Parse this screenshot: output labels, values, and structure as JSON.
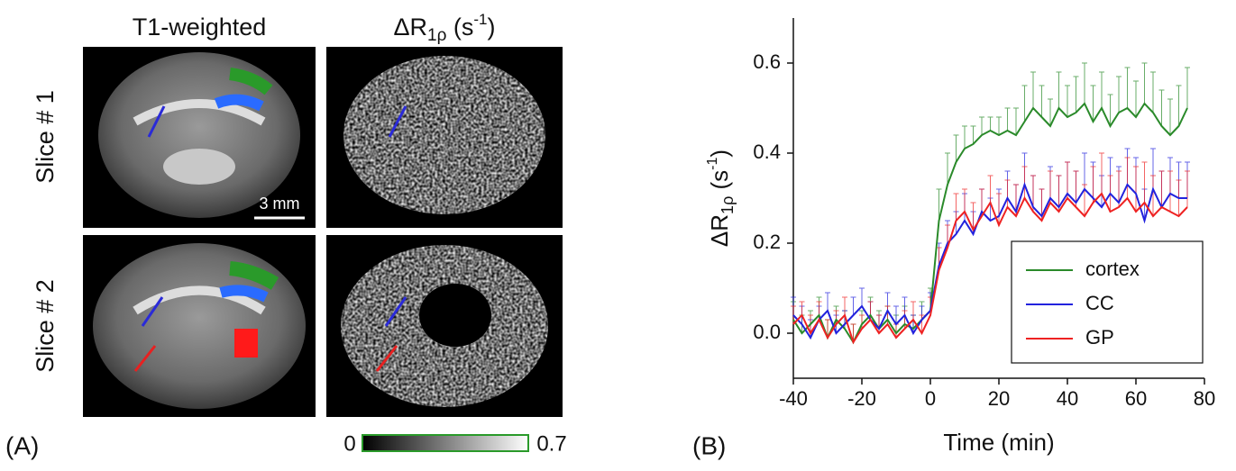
{
  "panel_a": {
    "label": "(A)",
    "column_1_title": "T1-weighted",
    "column_2_title": {
      "main": "ΔR",
      "sub": "1ρ",
      "unit_open": " (s",
      "unit_sup": "-1",
      "unit_close": ")"
    },
    "rows": [
      "Slice # 1",
      "Slice # 2"
    ],
    "scale_bar": "3 mm",
    "colorbar": {
      "min": 0,
      "max": 0.7
    }
  },
  "chart_data": {
    "type": "line",
    "label": "(B)",
    "xlabel": "Time (min)",
    "ylabel": {
      "main": "ΔR",
      "sub": "1ρ",
      "unit_open": " (s",
      "unit_sup": "-1",
      "unit_close": ")"
    },
    "x": [
      -40,
      -37.5,
      -35,
      -32.5,
      -30,
      -27.5,
      -25,
      -22.5,
      -20,
      -17.5,
      -15,
      -12.5,
      -10,
      -7.5,
      -5,
      -2.5,
      0,
      2.5,
      5,
      7.5,
      10,
      12.5,
      15,
      17.5,
      20,
      22.5,
      25,
      27.5,
      30,
      32.5,
      35,
      37.5,
      40,
      42.5,
      45,
      47.5,
      50,
      52.5,
      55,
      57.5,
      60,
      62.5,
      65,
      67.5,
      70,
      72.5,
      75
    ],
    "xlim": [
      -40,
      80
    ],
    "xticks": [
      -40,
      -20,
      0,
      20,
      40,
      60,
      80
    ],
    "ylim": [
      -0.1,
      0.7
    ],
    "yticks": [
      {
        "value": 0,
        "label": "0.0"
      },
      0.2,
      0.4,
      0.6
    ],
    "legend": "lower right",
    "series": [
      {
        "name": "cortex",
        "color": "#2a8a2a",
        "values": [
          0.03,
          0.0,
          0.02,
          0.04,
          -0.01,
          0.03,
          0.01,
          -0.02,
          0.02,
          0.04,
          0.01,
          0.03,
          0.0,
          0.02,
          0.01,
          0.03,
          0.05,
          0.25,
          0.33,
          0.38,
          0.41,
          0.42,
          0.44,
          0.45,
          0.44,
          0.45,
          0.44,
          0.47,
          0.5,
          0.48,
          0.46,
          0.5,
          0.48,
          0.49,
          0.51,
          0.47,
          0.5,
          0.46,
          0.49,
          0.5,
          0.48,
          0.51,
          0.49,
          0.46,
          0.44,
          0.46,
          0.5
        ],
        "errors": [
          0.04,
          0.04,
          0.03,
          0.04,
          0.04,
          0.03,
          0.04,
          0.04,
          0.03,
          0.04,
          0.04,
          0.03,
          0.04,
          0.04,
          0.03,
          0.04,
          0.05,
          0.07,
          0.07,
          0.06,
          0.05,
          0.04,
          0.04,
          0.03,
          0.04,
          0.05,
          0.06,
          0.08,
          0.08,
          0.07,
          0.06,
          0.08,
          0.07,
          0.08,
          0.09,
          0.08,
          0.08,
          0.07,
          0.08,
          0.09,
          0.08,
          0.09,
          0.09,
          0.08,
          0.08,
          0.09,
          0.09
        ]
      },
      {
        "name": "CC",
        "color": "#2222dd",
        "values": [
          0.04,
          0.02,
          -0.01,
          0.03,
          0.05,
          0.0,
          0.02,
          0.04,
          0.06,
          0.03,
          0.01,
          0.05,
          0.02,
          0.04,
          0.0,
          0.03,
          0.05,
          0.15,
          0.2,
          0.22,
          0.25,
          0.22,
          0.27,
          0.25,
          0.26,
          0.3,
          0.27,
          0.33,
          0.28,
          0.26,
          0.3,
          0.28,
          0.31,
          0.29,
          0.32,
          0.3,
          0.28,
          0.31,
          0.29,
          0.33,
          0.31,
          0.25,
          0.32,
          0.28,
          0.31,
          0.3,
          0.3
        ],
        "errors": [
          0.04,
          0.04,
          0.04,
          0.03,
          0.04,
          0.04,
          0.03,
          0.04,
          0.04,
          0.04,
          0.03,
          0.04,
          0.04,
          0.04,
          0.04,
          0.03,
          0.04,
          0.05,
          0.05,
          0.05,
          0.06,
          0.05,
          0.05,
          0.05,
          0.06,
          0.06,
          0.06,
          0.07,
          0.07,
          0.06,
          0.07,
          0.07,
          0.07,
          0.07,
          0.08,
          0.08,
          0.07,
          0.08,
          0.08,
          0.08,
          0.08,
          0.07,
          0.09,
          0.08,
          0.08,
          0.08,
          0.08
        ]
      },
      {
        "name": "GP",
        "color": "#ee2222",
        "values": [
          0.02,
          0.04,
          0.0,
          0.03,
          -0.01,
          0.02,
          0.04,
          -0.02,
          0.01,
          0.03,
          0.0,
          0.02,
          -0.01,
          0.01,
          0.03,
          0.0,
          0.04,
          0.14,
          0.19,
          0.25,
          0.27,
          0.23,
          0.26,
          0.29,
          0.24,
          0.28,
          0.26,
          0.3,
          0.27,
          0.25,
          0.29,
          0.27,
          0.3,
          0.28,
          0.26,
          0.29,
          0.31,
          0.27,
          0.28,
          0.3,
          0.27,
          0.29,
          0.26,
          0.28,
          0.27,
          0.26,
          0.28
        ],
        "errors": [
          0.04,
          0.03,
          0.04,
          0.04,
          0.04,
          0.03,
          0.04,
          0.04,
          0.03,
          0.04,
          0.04,
          0.04,
          0.03,
          0.04,
          0.04,
          0.04,
          0.04,
          0.05,
          0.05,
          0.06,
          0.05,
          0.06,
          0.06,
          0.06,
          0.07,
          0.06,
          0.07,
          0.07,
          0.08,
          0.07,
          0.07,
          0.08,
          0.08,
          0.08,
          0.07,
          0.08,
          0.09,
          0.08,
          0.08,
          0.09,
          0.1,
          0.09,
          0.09,
          0.08,
          0.09,
          0.08,
          0.08
        ]
      }
    ]
  }
}
